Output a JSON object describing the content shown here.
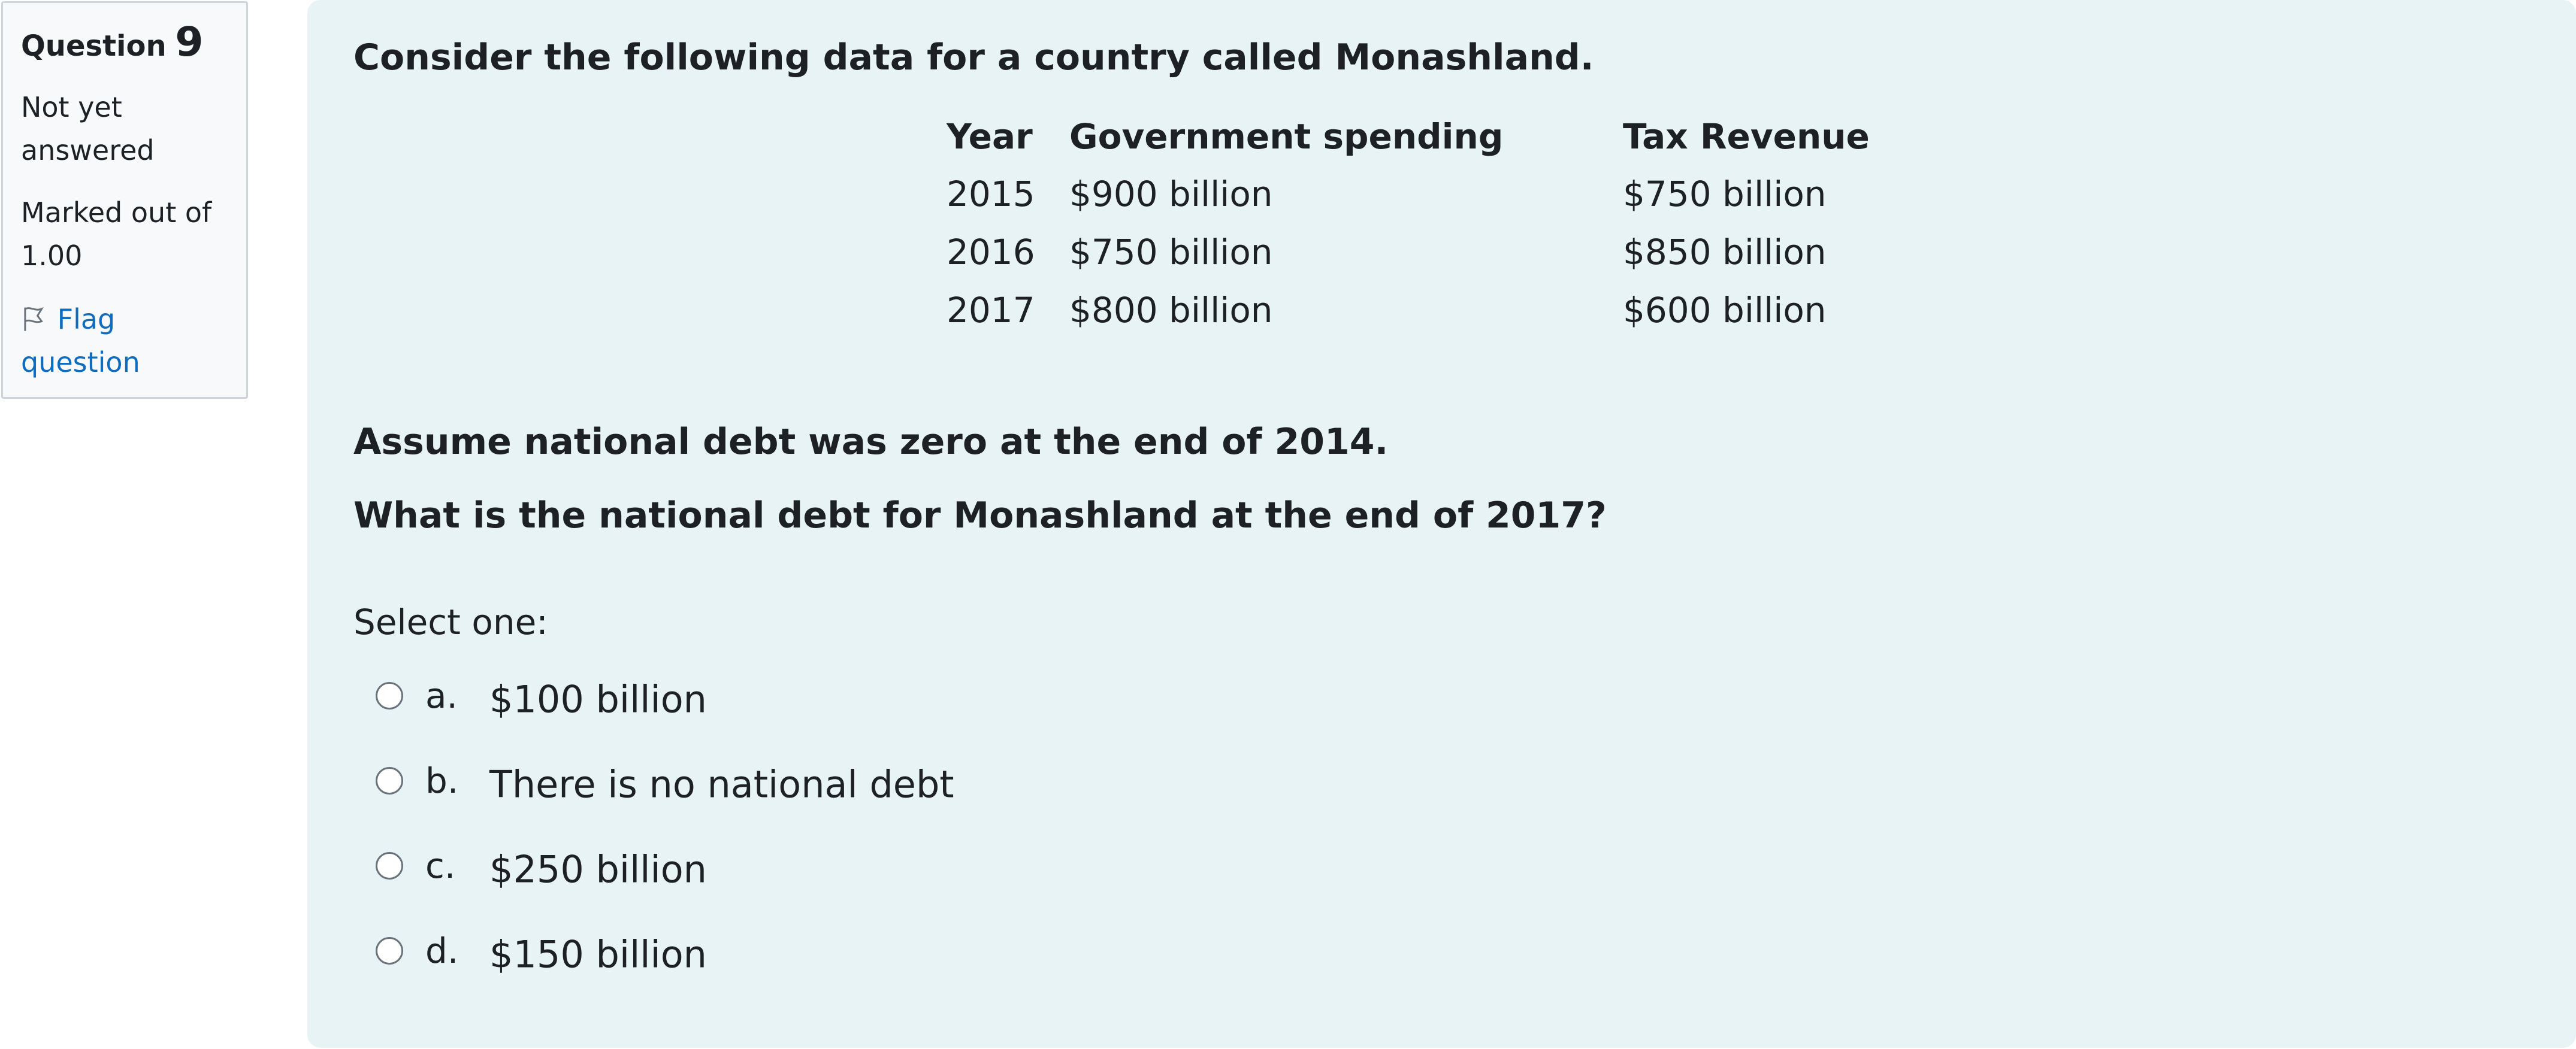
{
  "info": {
    "label": "Question",
    "number": "9",
    "state": "Not yet answered",
    "grade": "Marked out of 1.00",
    "flag": "Flag question"
  },
  "question": {
    "intro": "Consider the following data for a country called Monashland.",
    "table": {
      "header": [
        "Year",
        "Government spending",
        "Tax Revenue"
      ],
      "rows": [
        [
          "2015",
          "$900 billion",
          "$750 billion"
        ],
        [
          "2016",
          "$750 billion",
          "$850 billion"
        ],
        [
          "2017",
          "$800 billion",
          "$600 billion"
        ]
      ]
    },
    "assumption": "Assume national debt was zero at the end of 2014.",
    "prompt": "What is the national debt for Monashland at the end of 2017?",
    "select": "Select one:",
    "options": [
      {
        "letter": "a.",
        "text": "$100 billion"
      },
      {
        "letter": "b.",
        "text": "There is no national debt"
      },
      {
        "letter": "c.",
        "text": "$250 billion"
      },
      {
        "letter": "d.",
        "text": "$150 billion"
      }
    ]
  }
}
